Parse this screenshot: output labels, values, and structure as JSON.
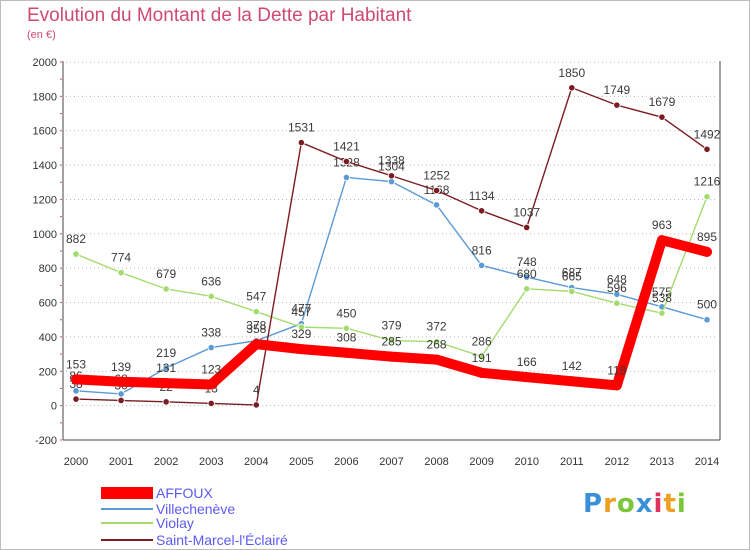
{
  "chart_data": {
    "type": "line",
    "title": "Evolution du Montant de la Dette par Habitant",
    "subtitle": "(en €)",
    "categories": [
      "2000",
      "2001",
      "2002",
      "2003",
      "2004",
      "2005",
      "2006",
      "2007",
      "2008",
      "2009",
      "2010",
      "2011",
      "2012",
      "2013",
      "2014"
    ],
    "ylim": [
      -200,
      2000
    ],
    "yticks": [
      -200,
      0,
      200,
      400,
      600,
      800,
      1000,
      1200,
      1400,
      1600,
      1800,
      2000
    ],
    "grid": "horizontal dotted",
    "legend_position": "bottom-left",
    "series": [
      {
        "name": "Villechenève",
        "color": "#5b9ad5",
        "values": [
          86,
          68,
          219,
          338,
          378,
          477,
          1328,
          1304,
          1168,
          816,
          748,
          687,
          648,
          575,
          500
        ]
      },
      {
        "name": "Violay",
        "color": "#a3dc6e",
        "values": [
          882,
          774,
          679,
          636,
          547,
          457,
          450,
          379,
          372,
          286,
          680,
          665,
          596,
          538,
          1216
        ]
      },
      {
        "name": "Saint-Marcel-l'Éclairé",
        "color": "#7b1c22",
        "values": [
          38,
          30,
          22,
          13,
          4,
          1531,
          1421,
          1338,
          1252,
          1134,
          1037,
          1850,
          1749,
          1679,
          1492
        ]
      },
      {
        "name": "AFFOUX",
        "color": "#ff0000",
        "values": [
          153,
          139,
          131,
          123,
          358,
          329,
          308,
          285,
          268,
          191,
          166,
          142,
          118,
          963,
          895
        ]
      }
    ]
  },
  "legend": [
    {
      "label": "AFFOUX",
      "color": "#ff0000"
    },
    {
      "label": "Villechenève",
      "color": "#5b9ad5"
    },
    {
      "label": "Violay",
      "color": "#a3dc6e"
    },
    {
      "label": "Saint-Marcel-l'Éclairé",
      "color": "#7b1c22"
    }
  ],
  "logo": {
    "letters": [
      "P",
      "r",
      "o",
      "x",
      "i",
      "t",
      "i"
    ],
    "colors": [
      "#3a8fd8",
      "#f0a020",
      "#7cc63a",
      "#3a8fd8",
      "#e0325a",
      "#f0a020",
      "#7cc63a"
    ]
  }
}
